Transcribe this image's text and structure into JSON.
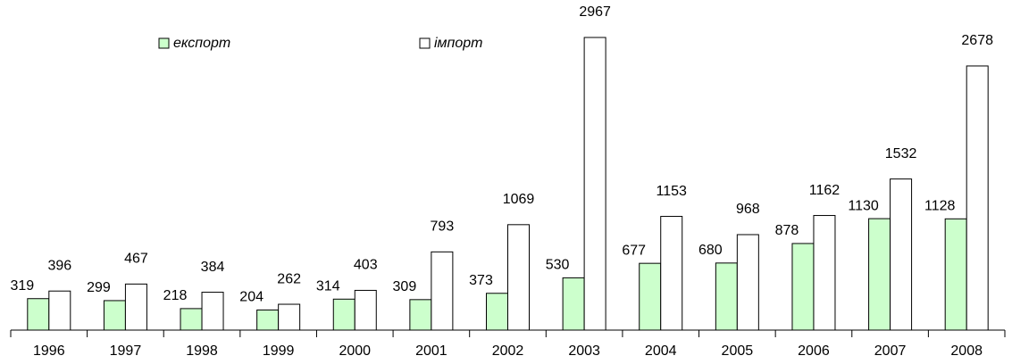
{
  "chart_data": {
    "type": "bar",
    "categories": [
      "1996",
      "1997",
      "1998",
      "1999",
      "2000",
      "2001",
      "2002",
      "2003",
      "2004",
      "2005",
      "2006",
      "2007",
      "2008"
    ],
    "series": [
      {
        "name": "експорт",
        "color": "#ccffcc",
        "values": [
          319,
          299,
          218,
          204,
          314,
          309,
          373,
          530,
          677,
          680,
          878,
          1130,
          1128
        ]
      },
      {
        "name": "імпорт",
        "color": "#ffffff",
        "values": [
          396,
          467,
          384,
          262,
          403,
          793,
          1069,
          2967,
          1153,
          968,
          1162,
          1532,
          2678
        ]
      }
    ]
  }
}
